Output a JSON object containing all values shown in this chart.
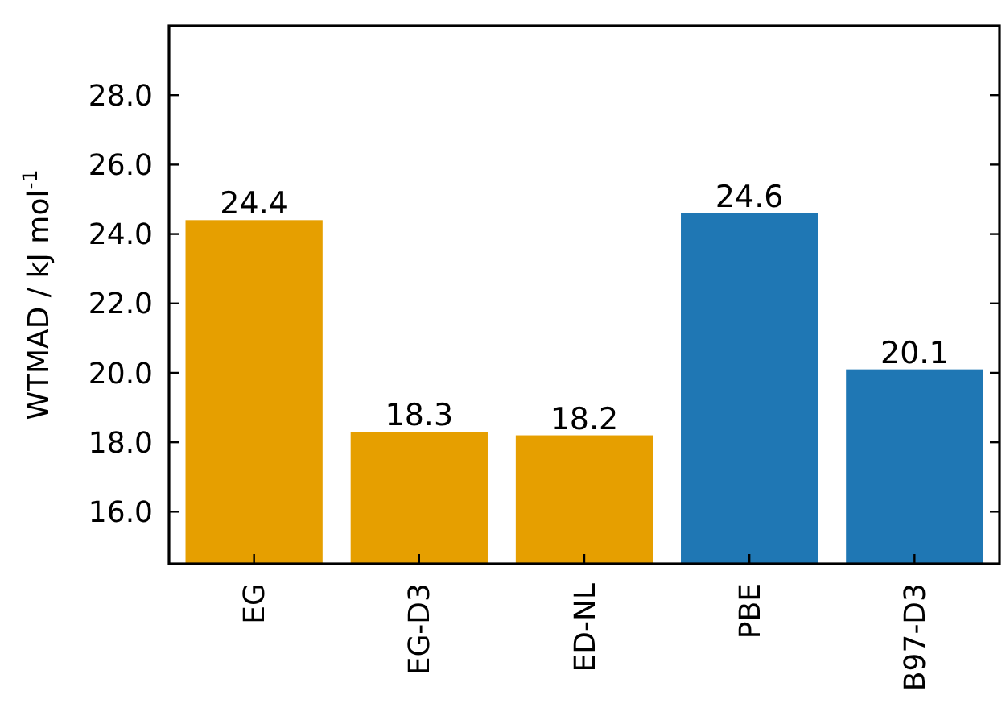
{
  "chart_data": {
    "type": "bar",
    "ylabel": "WTMAD / kJ mol$^{-1}$",
    "categories": [
      "EG",
      "EG-D3",
      "ED-NL",
      "PBE",
      "B97-D3"
    ],
    "values": [
      24.4,
      18.3,
      18.2,
      24.6,
      20.1
    ],
    "colors": [
      "#e69f00",
      "#e69f00",
      "#e69f00",
      "#1f77b4",
      "#1f77b4"
    ],
    "ylim": [
      14.5,
      30
    ],
    "yticks": [
      {
        "value": 16,
        "label": "16.0"
      },
      {
        "value": 18,
        "label": "18.0"
      },
      {
        "value": 20,
        "label": "20.0"
      },
      {
        "value": 22,
        "label": "22.0"
      },
      {
        "value": 24,
        "label": "24.0"
      },
      {
        "value": 26,
        "label": "26.0"
      },
      {
        "value": 28,
        "label": "28.0"
      }
    ],
    "data_labels": true
  }
}
